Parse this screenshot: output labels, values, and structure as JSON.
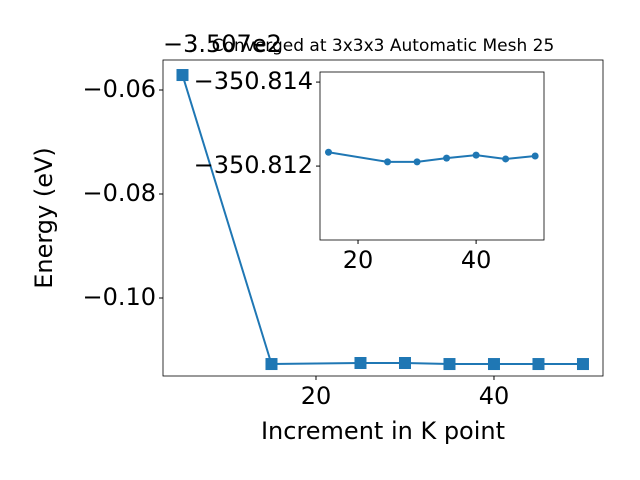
{
  "chart_data": [
    {
      "type": "line",
      "title": "Converged at 3x3x3 Automatic Mesh 25",
      "x_label": "Increment in K point",
      "y_label": "Energy (eV)",
      "y_offset": "−3.507e2",
      "x": [
        5,
        15,
        25,
        30,
        35,
        40,
        45,
        50
      ],
      "series": [
        {
          "color": "#1f77b4",
          "marker": "square",
          "values": [
            -0.05712,
            -0.1127,
            -0.1125,
            -0.1125,
            -0.1127,
            -0.1127,
            -0.1127,
            -0.1127
          ]
        }
      ],
      "xlim": [
        2.81,
        52.25
      ],
      "ylim": [
        -0.115,
        -0.05423
      ],
      "xticks": [
        20,
        40
      ],
      "yticks": [
        {
          "value": -0.06,
          "label": "−0.06"
        },
        {
          "value": -0.08,
          "label": "−0.08"
        },
        {
          "value": -0.1,
          "label": "−0.10"
        }
      ]
    },
    {
      "type": "line",
      "x": [
        15,
        25,
        30,
        35,
        40,
        45,
        50
      ],
      "series": [
        {
          "color": "#1f77b4",
          "marker": "circle",
          "values": [
            -350.81233,
            -350.8121,
            -350.8121,
            -350.81219,
            -350.81226,
            -350.81217,
            -350.81224
          ]
        }
      ],
      "xlim": [
        13.56,
        51.5
      ],
      "ylim": [
        -350.81024,
        -350.81424
      ],
      "xticks": [
        20,
        40
      ],
      "yticks": [
        {
          "value": -350.814,
          "label": "−350.814"
        },
        {
          "value": -350.812,
          "label": "−350.812"
        }
      ]
    }
  ]
}
